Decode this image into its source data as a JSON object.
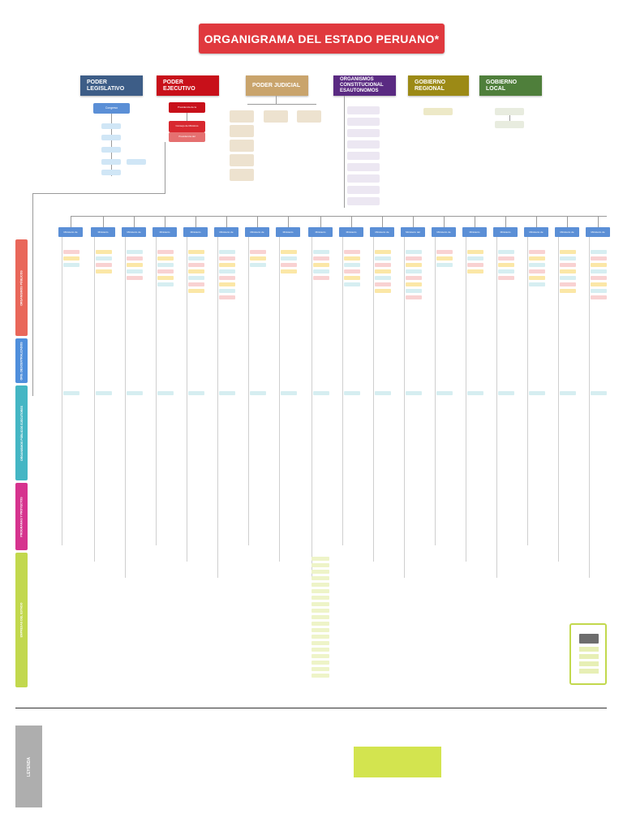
{
  "title": "ORGANIGRAMA DEL ESTADO PERUANO*",
  "colors": {
    "legislativo": "#3d5d87",
    "ejecutivo": "#c8101a",
    "judicial": "#c9a46c",
    "constitucional": "#5a2a82",
    "regional": "#9c8a16",
    "local": "#4f7f3b",
    "ministry": "#5b8fd6",
    "side_organismos": "#e9675a",
    "side_descentralizados": "#4f8fdc",
    "side_publicos": "#44b6c4",
    "side_programas": "#d6338e",
    "side_empresas": "#c2d84d"
  },
  "powers": [
    {
      "name": "PODER LEGISLATIVO"
    },
    {
      "name": "PODER EJECUTIVO"
    },
    {
      "name": "PODER JUDICIAL"
    },
    {
      "name": "ORGANISMOS CONSTITUCIONAL ESAUTONOMOS"
    },
    {
      "name": "GOBIERNO REGIONAL"
    },
    {
      "name": "GOBIERNO LOCAL"
    }
  ],
  "legislativo": {
    "congreso": "Congreso"
  },
  "ejecutivo": {
    "presidencia": "Presidencia de la",
    "consejo": "Consejo de Ministros",
    "pcm": "Presidencia del"
  },
  "ministries": [
    "Ministerio de",
    "Ministerio",
    "Ministerio de",
    "Ministerio",
    "Ministerio",
    "Ministerio de",
    "Ministerio de",
    "Ministerio",
    "Ministerio",
    "Ministerio",
    "Ministerio de",
    "Ministerio del",
    "Ministerio de",
    "Ministerio",
    "Ministerio",
    "Ministerio de",
    "Ministerio de",
    "Ministerio de"
  ],
  "legend": {
    "label": "LEYENDA"
  }
}
